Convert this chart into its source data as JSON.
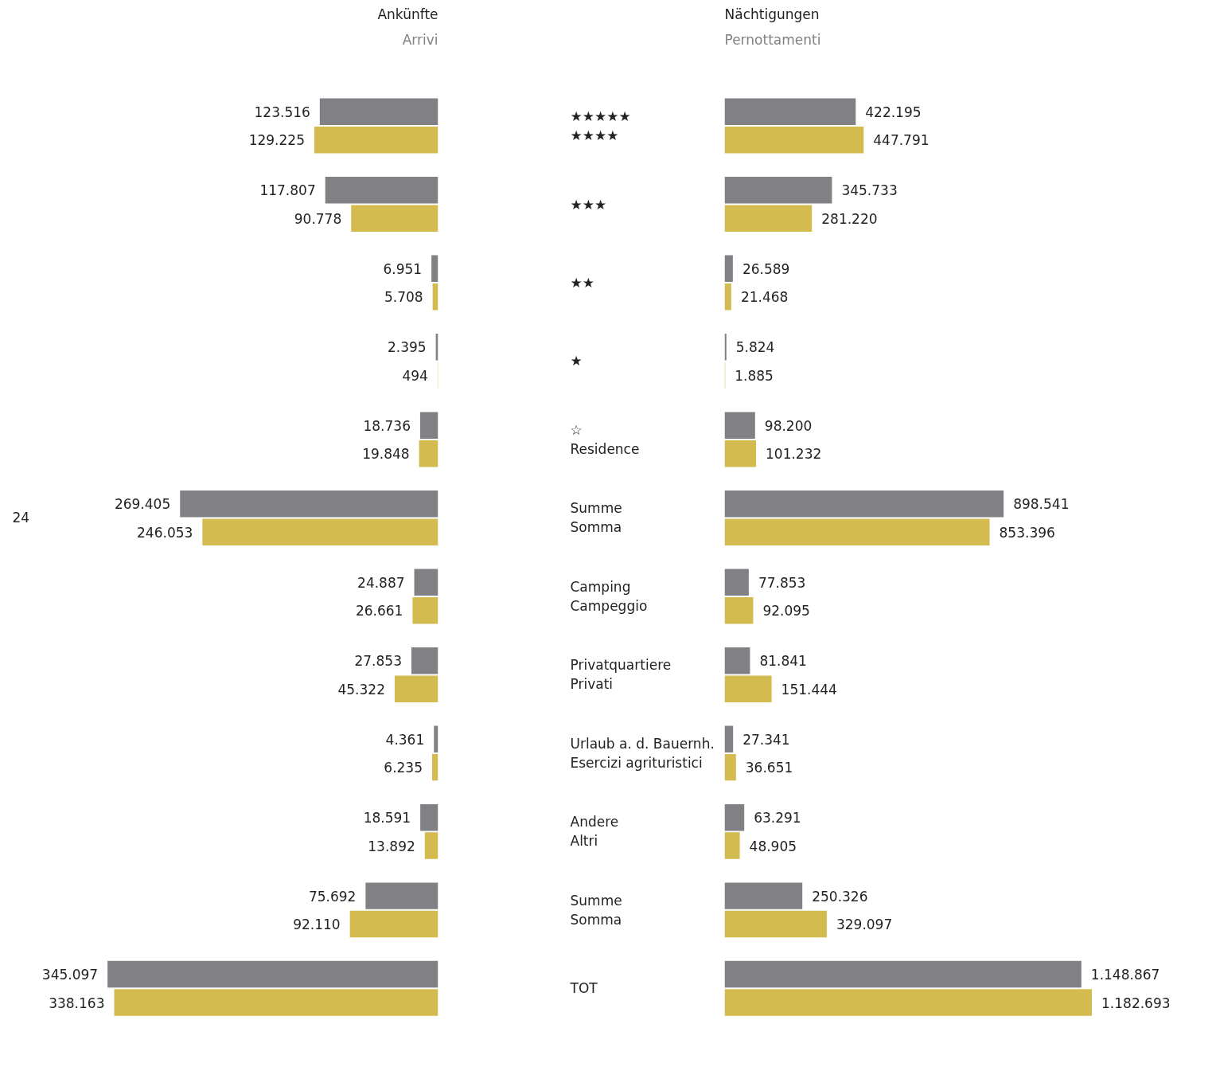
{
  "chart_data": [
    {
      "type": "bar",
      "orientation": "horizontal",
      "title": "Ankünfte",
      "subtitle": "Arrivi",
      "categories": [
        "★★★★★\n★★★★",
        "★★★",
        "★★",
        "★",
        "☆\nResidence",
        "Summe\nSomma",
        "Camping\nCampeggio",
        "Privatquartiere\nPrivati",
        "Urlaub a. d. Bauernh.\nEsercizi agrituristici",
        "Andere\nAltri",
        "Summe\nSomma",
        "TOT"
      ],
      "series": [
        {
          "color": "#808085",
          "values": [
            123516,
            117807,
            6951,
            2395,
            18736,
            269405,
            24887,
            27853,
            4361,
            18591,
            75692,
            345097
          ],
          "value_labels": [
            "123.516",
            "117.807",
            "6.951",
            "2.395",
            "18.736",
            "269.405",
            "24.887",
            "27.853",
            "4.361",
            "18.591",
            "75.692",
            "345.097"
          ]
        },
        {
          "color": "#d4bb4f",
          "values": [
            129225,
            90778,
            5708,
            494,
            19848,
            246053,
            26661,
            45322,
            6235,
            13892,
            92110,
            338163
          ],
          "value_labels": [
            "129.225",
            "90.778",
            "5.708",
            "494",
            "19.848",
            "246.053",
            "26.661",
            "45.322",
            "6.235",
            "13.892",
            "92.110",
            "338.163"
          ]
        }
      ],
      "tick_labels": "y",
      "annotations": [
        "24"
      ]
    },
    {
      "type": "bar",
      "orientation": "horizontal",
      "title": "Nächtigungen",
      "subtitle": "Pernottamenti",
      "series": [
        {
          "color": "#808085",
          "values": [
            422195,
            345733,
            26589,
            5824,
            98200,
            898541,
            77853,
            81841,
            27341,
            63291,
            250326,
            1148867
          ],
          "value_labels": [
            "422.195",
            "345.733",
            "26.589",
            "5.824",
            "98.200",
            "898.541",
            "77.853",
            "81.841",
            "27.341",
            "63.291",
            "250.326",
            "1.148.867"
          ]
        },
        {
          "color": "#d4bb4f",
          "values": [
            447791,
            281220,
            21468,
            1885,
            101232,
            853396,
            92095,
            151444,
            36651,
            48905,
            329097,
            1182693
          ],
          "value_labels": [
            "447.791",
            "281.220",
            "21.468",
            "1.885",
            "101.232",
            "853.396",
            "92.095",
            "151.444",
            "36.651",
            "48.905",
            "329.097",
            "1.182.693"
          ]
        }
      ],
      "tick_labels": false
    }
  ]
}
